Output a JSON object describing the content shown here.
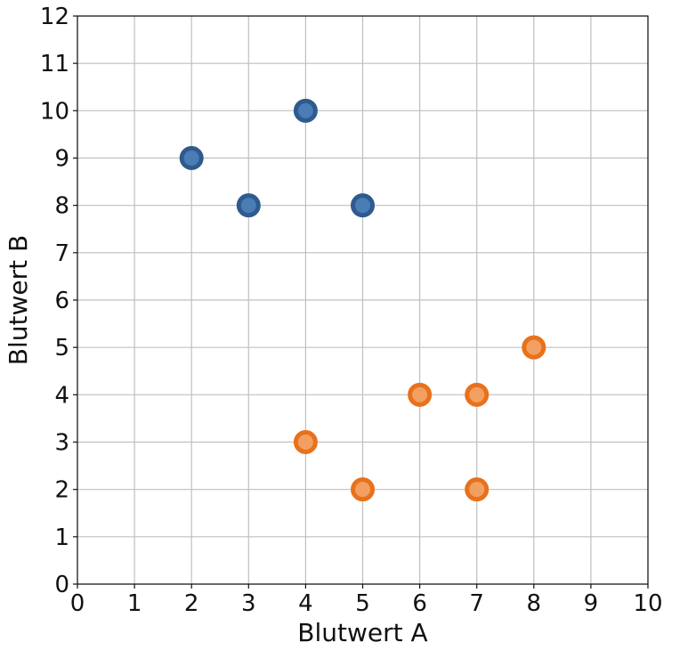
{
  "chart_data": {
    "type": "scatter",
    "xlabel": "Blutwert A",
    "ylabel": "Blutwert B",
    "xlim": [
      0,
      10
    ],
    "ylim": [
      0,
      12
    ],
    "xticks": [
      "0",
      "1",
      "2",
      "3",
      "4",
      "5",
      "6",
      "7",
      "8",
      "9",
      "10"
    ],
    "yticks": [
      "0",
      "1",
      "2",
      "3",
      "4",
      "5",
      "6",
      "7",
      "8",
      "9",
      "10",
      "11",
      "12"
    ],
    "grid": true,
    "series": [
      {
        "color": "#2e5a8e",
        "inner_color": "#4a7cb5",
        "points": [
          {
            "x": 2,
            "y": 9
          },
          {
            "x": 3,
            "y": 8
          },
          {
            "x": 4,
            "y": 10
          },
          {
            "x": 5,
            "y": 8
          }
        ]
      },
      {
        "color": "#e8711c",
        "inner_color": "#f2a062",
        "points": [
          {
            "x": 4,
            "y": 3
          },
          {
            "x": 5,
            "y": 2
          },
          {
            "x": 6,
            "y": 4
          },
          {
            "x": 7,
            "y": 4
          },
          {
            "x": 7,
            "y": 2
          },
          {
            "x": 8,
            "y": 5
          }
        ]
      }
    ]
  }
}
